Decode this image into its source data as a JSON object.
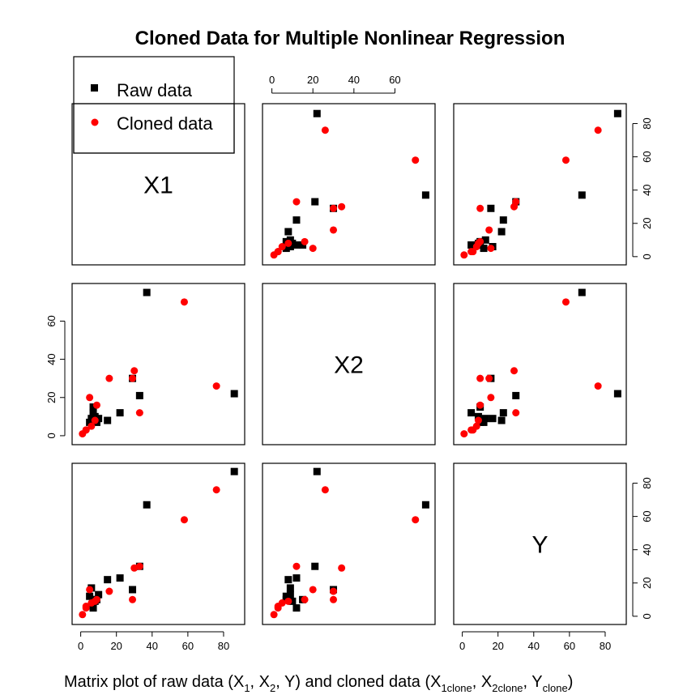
{
  "title": "Cloned Data for Multiple Nonlinear Regression",
  "caption": {
    "prefix": "Matrix plot of raw data (X",
    "sub1": "1",
    "sep1": ", X",
    "sub2": "2",
    "sep2": ", Y) and cloned data (X",
    "sub3": "1clone",
    "sep3": ", X",
    "sub4": "2clone",
    "sep4": ", Y",
    "sub5": "clone",
    "suffix": ")"
  },
  "legend": {
    "raw_label": "Raw data",
    "cloned_label": "Cloned data",
    "position": "top-left"
  },
  "colors": {
    "raw": "#000000",
    "cloned": "#ff0000",
    "frame": "#000000"
  },
  "variables": [
    "X1",
    "X2",
    "Y"
  ],
  "axis_ticks": {
    "X1": [
      0,
      20,
      40,
      60,
      80
    ],
    "X2": [
      0,
      20,
      40,
      60
    ],
    "Y": [
      0,
      20,
      40,
      60,
      80
    ]
  },
  "chart_data": {
    "type": "scatter",
    "layout": "pairs-matrix",
    "variables": [
      "X1",
      "X2",
      "Y"
    ],
    "ranges": {
      "X1": [
        -3,
        90
      ],
      "X2": [
        -3,
        78
      ],
      "Y": [
        -3,
        90
      ]
    },
    "grid": false,
    "series": [
      {
        "name": "Raw data",
        "marker": "square",
        "X1": [
          86,
          37,
          33,
          22,
          29,
          15,
          9,
          8,
          7,
          7,
          10,
          5,
          6
        ],
        "X2": [
          22,
          75,
          21,
          12,
          30,
          8,
          7,
          10,
          12,
          15,
          9,
          7,
          9
        ],
        "Y": [
          87,
          67,
          30,
          23,
          16,
          22,
          10,
          9,
          5,
          10,
          13,
          12,
          17
        ]
      },
      {
        "name": "Cloned data",
        "marker": "circle",
        "X1": [
          76,
          30,
          58,
          33,
          16,
          5,
          1,
          8,
          9,
          3,
          6,
          3,
          29
        ],
        "X2": [
          26,
          34,
          70,
          12,
          30,
          20,
          1,
          8,
          16,
          3,
          5,
          3,
          30
        ],
        "Y": [
          76,
          29,
          58,
          30,
          15,
          16,
          1,
          9,
          10,
          6,
          8,
          5,
          10
        ]
      }
    ]
  }
}
